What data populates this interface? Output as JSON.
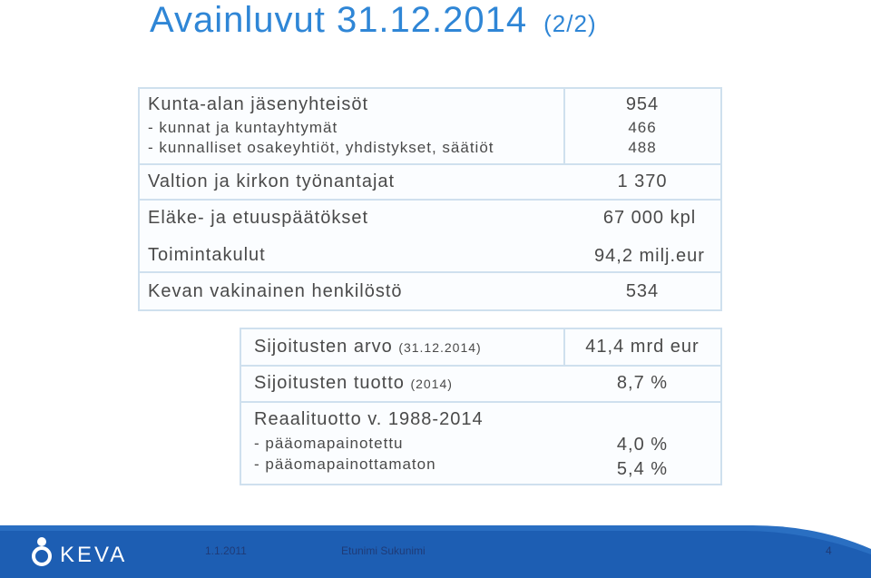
{
  "header": {
    "title": "Avainluvut 31.12.2014",
    "part": "(2/2)"
  },
  "table1": {
    "rows": [
      {
        "label": [
          "Kunta-alan jäsenyhteisöt",
          "- kunnat ja kuntayhtymät",
          "- kunnalliset osakeyhtiöt, yhdistykset, säätiöt"
        ],
        "value": [
          "954",
          "466",
          "488"
        ]
      },
      {
        "label": [
          "Valtion ja kirkon työnantajat"
        ],
        "value": [
          "1 370"
        ]
      },
      {
        "label": [
          "Eläke- ja etuuspäätökset"
        ],
        "value": [
          "67 000 kpl"
        ]
      },
      {
        "label": [
          "Toimintakulut"
        ],
        "value": [
          "94,2 milj.eur"
        ]
      },
      {
        "label": [
          "Kevan vakinainen henkilöstö"
        ],
        "value": [
          "534"
        ]
      }
    ]
  },
  "table2": {
    "rows": [
      {
        "label": "Sijoitusten arvo",
        "note": "(31.12.2014)",
        "value": [
          "41,4 mrd eur"
        ]
      },
      {
        "label": "Sijoitusten tuotto",
        "note": "(2014)",
        "value": [
          "8,7 %"
        ]
      },
      {
        "label": "Reaalituotto v. 1988-2014",
        "sublabels": [
          "- pääomapainotettu",
          "- pääomapainottamaton"
        ],
        "value": [
          "4,0 %",
          "5,4 %"
        ]
      }
    ]
  },
  "footer": {
    "logo": "KEVA",
    "date": "1.1.2011",
    "author": "Etunimi Sukunimi",
    "page": "4"
  }
}
